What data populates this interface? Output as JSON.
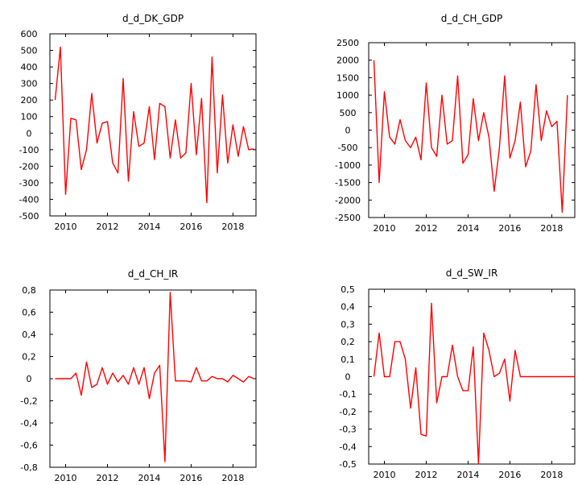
{
  "chart_data": [
    {
      "type": "line",
      "title": "d_d_DK_GDP",
      "xlabel": "",
      "ylabel": "",
      "xlim": [
        2009.25,
        2019.1
      ],
      "ylim": [
        -500,
        600
      ],
      "xticks": [
        "2010",
        "2012",
        "2014",
        "2016",
        "2018"
      ],
      "yticks": [
        "600",
        "500",
        "400",
        "300",
        "200",
        "100",
        "0",
        "-100",
        "-200",
        "-300",
        "-400",
        "-500"
      ],
      "grid": false,
      "line_color": "#ff0000",
      "series": [
        {
          "x": [
            2009.5,
            2009.75,
            2010.0,
            2010.25,
            2010.5,
            2010.75,
            2011.0,
            2011.25,
            2011.5,
            2011.75,
            2012.0,
            2012.25,
            2012.5,
            2012.75,
            2013.0,
            2013.25,
            2013.5,
            2013.75,
            2014.0,
            2014.25,
            2014.5,
            2014.75,
            2015.0,
            2015.25,
            2015.5,
            2015.75,
            2016.0,
            2016.25,
            2016.5,
            2016.75,
            2017.0,
            2017.25,
            2017.5,
            2017.75,
            2018.0,
            2018.25,
            2018.5,
            2018.75,
            2019.0
          ],
          "y": [
            200,
            520,
            -370,
            90,
            80,
            -220,
            -100,
            240,
            -60,
            60,
            70,
            -180,
            -240,
            330,
            -290,
            130,
            -80,
            -60,
            160,
            -160,
            180,
            160,
            -150,
            80,
            -150,
            -120,
            300,
            -130,
            210,
            -420,
            460,
            -240,
            230,
            -180,
            50,
            -140,
            40,
            -100,
            -95
          ]
        }
      ]
    },
    {
      "type": "line",
      "title": "d_d_CH_GDP",
      "xlabel": "",
      "ylabel": "",
      "xlim": [
        2009.25,
        2019.1
      ],
      "ylim": [
        -2500,
        2500
      ],
      "xticks": [
        "2010",
        "2012",
        "2014",
        "2016",
        "2018"
      ],
      "yticks": [
        "2500",
        "2000",
        "1500",
        "1000",
        "500",
        "0",
        "-500",
        "-1000",
        "-1500",
        "-2000",
        "-2500"
      ],
      "grid": false,
      "line_color": "#ff0000",
      "series": [
        {
          "x": [
            2009.5,
            2009.75,
            2010.0,
            2010.25,
            2010.5,
            2010.75,
            2011.0,
            2011.25,
            2011.5,
            2011.75,
            2012.0,
            2012.25,
            2012.5,
            2012.75,
            2013.0,
            2013.25,
            2013.5,
            2013.75,
            2014.0,
            2014.25,
            2014.5,
            2014.75,
            2015.0,
            2015.25,
            2015.5,
            2015.75,
            2016.0,
            2016.25,
            2016.5,
            2016.75,
            2017.0,
            2017.25,
            2017.5,
            2017.75,
            2018.0,
            2018.25,
            2018.5,
            2018.75
          ],
          "y": [
            2000,
            -1500,
            1100,
            -200,
            -400,
            300,
            -300,
            -500,
            -200,
            -850,
            1350,
            -500,
            -750,
            1000,
            -400,
            -300,
            1550,
            -950,
            -700,
            900,
            -300,
            500,
            -200,
            -1750,
            -500,
            1550,
            -800,
            -300,
            800,
            -1050,
            -600,
            1300,
            -300,
            550,
            100,
            250,
            -2350,
            1000
          ]
        }
      ]
    },
    {
      "type": "line",
      "title": "d_d_CH_IR",
      "xlabel": "",
      "ylabel": "",
      "xlim": [
        2009.25,
        2019.1
      ],
      "ylim": [
        -0.8,
        0.8
      ],
      "xticks": [
        "2010",
        "2012",
        "2014",
        "2016",
        "2018"
      ],
      "yticks": [
        "0,8",
        "0,6",
        "0,4",
        "0,2",
        "0",
        "-0,2",
        "-0,4",
        "-0,6",
        "-0,8"
      ],
      "grid": false,
      "line_color": "#ff0000",
      "series": [
        {
          "x": [
            2009.5,
            2009.75,
            2010.0,
            2010.25,
            2010.5,
            2010.75,
            2011.0,
            2011.25,
            2011.5,
            2011.75,
            2012.0,
            2012.25,
            2012.5,
            2012.75,
            2013.0,
            2013.25,
            2013.5,
            2013.75,
            2014.0,
            2014.25,
            2014.5,
            2014.75,
            2015.0,
            2015.25,
            2015.5,
            2015.75,
            2016.0,
            2016.25,
            2016.5,
            2016.75,
            2017.0,
            2017.25,
            2017.5,
            2017.75,
            2018.0,
            2018.25,
            2018.5,
            2018.75,
            2019.0
          ],
          "y": [
            0,
            0,
            0,
            0,
            0.05,
            -0.15,
            0.15,
            -0.08,
            -0.05,
            0.1,
            -0.05,
            0.05,
            -0.03,
            0.03,
            -0.05,
            0.1,
            -0.05,
            0.1,
            -0.18,
            0.05,
            0.12,
            -0.75,
            0.78,
            -0.02,
            -0.02,
            -0.02,
            -0.03,
            0.1,
            -0.02,
            -0.02,
            0.02,
            0,
            0,
            -0.03,
            0.03,
            0,
            -0.03,
            0.02,
            0
          ]
        }
      ]
    },
    {
      "type": "line",
      "title": "d_d_SW_IR",
      "xlabel": "",
      "ylabel": "",
      "xlim": [
        2009.25,
        2019.1
      ],
      "ylim": [
        -0.5,
        0.5
      ],
      "xticks": [
        "2010",
        "2012",
        "2014",
        "2016",
        "2018"
      ],
      "yticks": [
        "0,5",
        "0,4",
        "0,3",
        "0,2",
        "0,1",
        "0",
        "-0,1",
        "-0,2",
        "-0,3",
        "-0,4",
        "-0,5"
      ],
      "grid": false,
      "line_color": "#ff0000",
      "series": [
        {
          "x": [
            2009.5,
            2009.75,
            2010.0,
            2010.25,
            2010.5,
            2010.75,
            2011.0,
            2011.25,
            2011.5,
            2011.75,
            2012.0,
            2012.25,
            2012.5,
            2012.75,
            2013.0,
            2013.25,
            2013.5,
            2013.75,
            2014.0,
            2014.25,
            2014.5,
            2014.75,
            2015.0,
            2015.25,
            2015.5,
            2015.75,
            2016.0,
            2016.25,
            2016.5,
            2016.75,
            2017.0,
            2017.25,
            2017.5,
            2017.75,
            2018.0,
            2018.25,
            2018.5,
            2018.75,
            2019.1
          ],
          "y": [
            0,
            0.25,
            0,
            0,
            0.2,
            0.2,
            0.1,
            -0.18,
            0.05,
            -0.33,
            -0.34,
            0.42,
            -0.15,
            0,
            0,
            0.18,
            0,
            -0.08,
            -0.08,
            0.17,
            -0.5,
            0.25,
            0.15,
            0,
            0.02,
            0.1,
            -0.14,
            0.15,
            0,
            0,
            0,
            0,
            0,
            0,
            0,
            0,
            0,
            0,
            0
          ]
        }
      ]
    }
  ]
}
